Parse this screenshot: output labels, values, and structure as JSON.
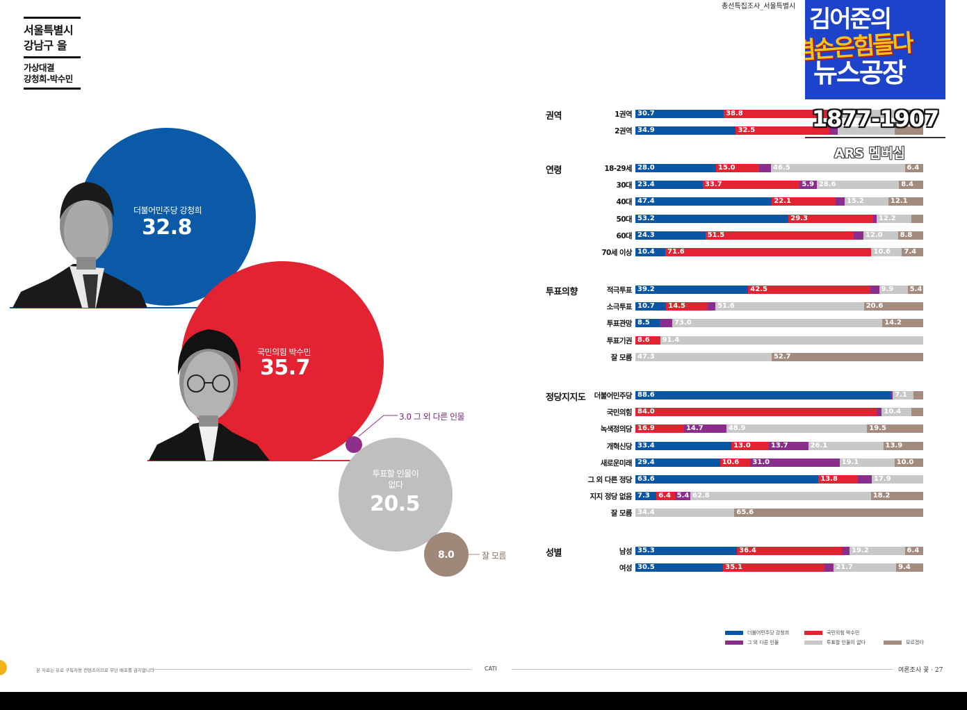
{
  "title": {
    "region": "서울특별시\n강남구 을",
    "matchup": "가상대결\n강청희-박수민"
  },
  "header_snippet": "총선특집조사_서울특별시",
  "logo": {
    "line1": "김어준의",
    "line2": "겸손은힘들다",
    "line3": "뉴스공장",
    "phone": "1877-1907",
    "ars": "ARS 멤버십"
  },
  "bubbles": {
    "dem": {
      "label": "더불어민주당 강청희",
      "value": "32.8",
      "color": "#0b5aa8"
    },
    "ppp": {
      "label": "국민의힘 박수민",
      "value": "35.7",
      "color": "#e32232"
    },
    "other": {
      "label": "3.0 그 외 다른 인물",
      "value": 3.0,
      "color": "#8e2f8c"
    },
    "none": {
      "label": "투표할 인물이 없다",
      "value": "20.5",
      "color": "#bfbfbf"
    },
    "unknown": {
      "label": "잘 모름",
      "value": "8.0",
      "color": "#a08878"
    }
  },
  "chart_data": {
    "type": "bar",
    "stacked": true,
    "orientation": "horizontal",
    "series_names": [
      "더불어민주당 강청희",
      "국민의힘 박수민",
      "그 외 다른 인물",
      "투표할 인물이 없다",
      "모르겠다"
    ],
    "colors": [
      "#0b55a5",
      "#e32232",
      "#8a2e8c",
      "#c8c8c8",
      "#a38b7d"
    ],
    "groups": [
      {
        "title": "권역",
        "rows": [
          {
            "label": "1권역",
            "values": [
              30.7,
              38.8,
              2.5,
              21.5,
              6.5
            ],
            "labels": [
              "30.7",
              "38.8",
              "",
              "",
              ""
            ]
          },
          {
            "label": "2권역",
            "values": [
              34.9,
              32.5,
              3.0,
              19.8,
              9.8
            ],
            "labels": [
              "34.9",
              "32.5",
              "",
              "",
              ""
            ]
          }
        ]
      },
      {
        "title": "연령",
        "rows": [
          {
            "label": "18-29세",
            "values": [
              28.0,
              15.0,
              4.1,
              46.5,
              6.4
            ],
            "labels": [
              "28.0",
              "15.0",
              "",
              "46.5",
              "6.4"
            ]
          },
          {
            "label": "30대",
            "values": [
              23.4,
              33.7,
              5.9,
              28.6,
              8.4
            ],
            "labels": [
              "23.4",
              "33.7",
              "5.9",
              "28.6",
              "8.4"
            ]
          },
          {
            "label": "40대",
            "values": [
              47.4,
              22.1,
              3.2,
              15.2,
              12.1
            ],
            "labels": [
              "47.4",
              "22.1",
              "",
              "15.2",
              "12.1"
            ]
          },
          {
            "label": "50대",
            "values": [
              53.2,
              29.3,
              1.3,
              12.2,
              4.0
            ],
            "labels": [
              "53.2",
              "29.3",
              "",
              "12.2",
              ""
            ]
          },
          {
            "label": "60대",
            "values": [
              24.3,
              51.5,
              3.4,
              12.0,
              8.8
            ],
            "labels": [
              "24.3",
              "51.5",
              "",
              "12.0",
              "8.8"
            ]
          },
          {
            "label": "70세 이상",
            "values": [
              10.4,
              71.6,
              0.0,
              10.6,
              7.4
            ],
            "labels": [
              "10.4",
              "71.6",
              "",
              "10.6",
              "7.4"
            ]
          }
        ]
      },
      {
        "title": "투표의향",
        "rows": [
          {
            "label": "적극투표",
            "values": [
              39.2,
              42.5,
              3.0,
              9.9,
              5.4
            ],
            "labels": [
              "39.2",
              "42.5",
              "",
              "9.9",
              "5.4"
            ]
          },
          {
            "label": "소극투표",
            "values": [
              10.7,
              14.5,
              2.6,
              51.6,
              20.6
            ],
            "labels": [
              "10.7",
              "14.5",
              "",
              "51.6",
              "20.6"
            ]
          },
          {
            "label": "투표관망",
            "values": [
              8.5,
              0.0,
              4.3,
              73.0,
              14.2
            ],
            "labels": [
              "8.5",
              "",
              "",
              "73.0",
              "14.2"
            ]
          },
          {
            "label": "투표기권",
            "values": [
              0.0,
              8.6,
              0.0,
              91.4,
              0.0
            ],
            "labels": [
              "",
              "8.6",
              "",
              "91.4",
              ""
            ]
          },
          {
            "label": "잘 모름",
            "values": [
              0.0,
              0.0,
              0.0,
              47.3,
              52.7
            ],
            "labels": [
              "",
              "",
              "",
              "47.3",
              "52.7"
            ]
          }
        ]
      },
      {
        "title": "정당지지도",
        "rows": [
          {
            "label": "더불어민주당",
            "values": [
              88.6,
              0.0,
              0.8,
              7.1,
              3.5
            ],
            "labels": [
              "88.6",
              "",
              "",
              "7.1",
              ""
            ]
          },
          {
            "label": "국민의힘",
            "values": [
              0.0,
              84.0,
              1.6,
              10.4,
              4.0
            ],
            "labels": [
              "",
              "84.0",
              "",
              "10.4",
              ""
            ]
          },
          {
            "label": "녹색정의당",
            "values": [
              0.0,
              16.9,
              14.7,
              48.9,
              19.5
            ],
            "labels": [
              "",
              "16.9",
              "14.7",
              "48.9",
              "19.5"
            ]
          },
          {
            "label": "개혁신당",
            "values": [
              33.4,
              13.0,
              13.7,
              26.1,
              13.9
            ],
            "labels": [
              "33.4",
              "13.0",
              "13.7",
              "26.1",
              "13.9"
            ]
          },
          {
            "label": "새로운미래",
            "values": [
              29.4,
              10.6,
              31.0,
              19.1,
              10.0
            ],
            "labels": [
              "29.4",
              "10.6",
              "31.0",
              "19.1",
              "10.0"
            ]
          },
          {
            "label": "그 외 다른 정당",
            "values": [
              63.6,
              13.8,
              4.7,
              17.9,
              0.0
            ],
            "labels": [
              "63.6",
              "13.8",
              "",
              "17.9",
              ""
            ]
          },
          {
            "label": "지지 정당 없음",
            "values": [
              7.3,
              6.4,
              5.4,
              62.8,
              18.2
            ],
            "labels": [
              "7.3",
              "6.4",
              "5.4",
              "62.8",
              "18.2"
            ]
          },
          {
            "label": "잘 모름",
            "values": [
              0.0,
              0.0,
              0.0,
              34.4,
              65.6
            ],
            "labels": [
              "",
              "",
              "",
              "34.4",
              "65.6"
            ]
          }
        ]
      },
      {
        "title": "성별",
        "rows": [
          {
            "label": "남성",
            "values": [
              35.3,
              36.4,
              2.7,
              19.2,
              6.4
            ],
            "labels": [
              "35.3",
              "36.4",
              "",
              "19.2",
              "6.4"
            ]
          },
          {
            "label": "여성",
            "values": [
              30.5,
              35.1,
              3.3,
              21.7,
              9.4
            ],
            "labels": [
              "30.5",
              "35.1",
              "",
              "21.7",
              "9.4"
            ]
          }
        ]
      }
    ]
  },
  "legend": {
    "items": [
      {
        "label": "더불어민주당 강청희",
        "color": "#0b55a5"
      },
      {
        "label": "국민의힘 박수민",
        "color": "#e32232"
      },
      {
        "label": "모르겠다",
        "color": "#a38b7d"
      },
      {
        "label": "그 외 다른 인물",
        "color": "#8a2e8c"
      },
      {
        "label": "투표할 인물이 없다",
        "color": "#c8c8c8"
      }
    ]
  },
  "footer": {
    "notice": "본 자료는 유료 구독자용 컨텐츠이므로 무단 배포를 금지합니다",
    "method": "CATI",
    "page": "여론조사 꽃 · 27"
  }
}
